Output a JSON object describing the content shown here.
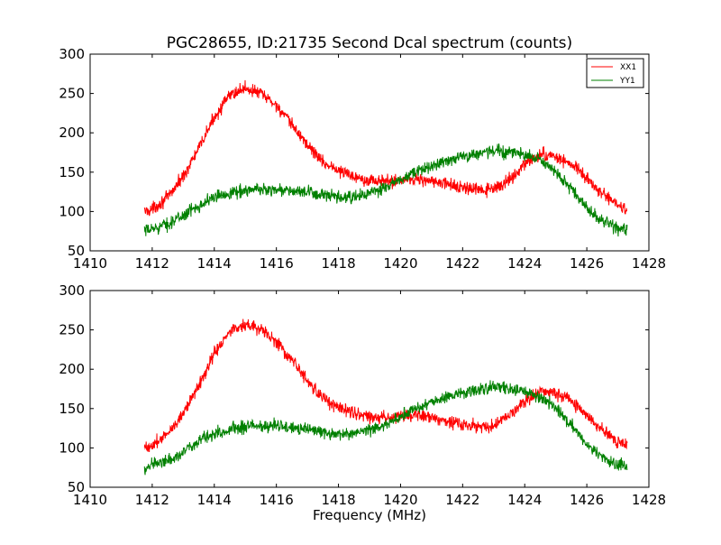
{
  "colors": {
    "background": "#ffffff",
    "axes": "#000000",
    "XX1": "#ff0000",
    "YY1": "#008000"
  },
  "chart_data": [
    {
      "type": "line",
      "title": "PGC28655, ID:21735 Second Dcal spectrum (counts)",
      "xlabel": "",
      "ylabel": "",
      "xlim": [
        1410,
        1428
      ],
      "ylim": [
        50,
        300
      ],
      "xticks": [
        1410,
        1412,
        1414,
        1416,
        1418,
        1420,
        1422,
        1424,
        1426,
        1428
      ],
      "yticks": [
        50,
        100,
        150,
        200,
        250,
        300
      ],
      "grid": false,
      "legend": {
        "placement": "top-right"
      },
      "noise": 5,
      "series": [
        {
          "name": "XX1",
          "color": "#ff0000",
          "x": [
            1411.75,
            1412.0,
            1412.5,
            1413.0,
            1413.5,
            1414.0,
            1414.5,
            1415.0,
            1415.5,
            1416.0,
            1416.5,
            1417.0,
            1417.5,
            1418.0,
            1418.5,
            1419.0,
            1419.5,
            1420.0,
            1420.5,
            1421.0,
            1421.5,
            1422.0,
            1422.5,
            1423.0,
            1423.5,
            1424.0,
            1424.5,
            1425.0,
            1425.5,
            1426.0,
            1426.5,
            1427.0,
            1427.3
          ],
          "y": [
            100,
            103,
            118,
            145,
            180,
            220,
            248,
            257,
            250,
            235,
            210,
            185,
            163,
            152,
            145,
            140,
            138,
            140,
            142,
            138,
            135,
            130,
            127,
            128,
            140,
            160,
            172,
            170,
            160,
            142,
            122,
            108,
            104
          ]
        },
        {
          "name": "YY1",
          "color": "#008000",
          "x": [
            1411.75,
            1412.0,
            1412.5,
            1413.0,
            1413.5,
            1414.0,
            1414.5,
            1415.0,
            1415.5,
            1416.0,
            1416.5,
            1417.0,
            1417.5,
            1418.0,
            1418.5,
            1419.0,
            1419.5,
            1420.0,
            1420.5,
            1421.0,
            1421.5,
            1422.0,
            1422.5,
            1423.0,
            1423.5,
            1424.0,
            1424.5,
            1425.0,
            1425.5,
            1426.0,
            1426.5,
            1427.0,
            1427.3
          ],
          "y": [
            74,
            78,
            84,
            95,
            108,
            118,
            124,
            127,
            128,
            128,
            126,
            124,
            121,
            117,
            118,
            123,
            130,
            140,
            150,
            158,
            165,
            170,
            174,
            177,
            176,
            172,
            165,
            150,
            128,
            105,
            88,
            79,
            77
          ]
        }
      ]
    },
    {
      "type": "line",
      "title": "",
      "xlabel": "Frequency (MHz)",
      "ylabel": "",
      "xlim": [
        1410,
        1428
      ],
      "ylim": [
        50,
        300
      ],
      "xticks": [
        1410,
        1412,
        1414,
        1416,
        1418,
        1420,
        1422,
        1424,
        1426,
        1428
      ],
      "yticks": [
        50,
        100,
        150,
        200,
        250,
        300
      ],
      "grid": false,
      "noise": 5,
      "series": [
        {
          "color": "#ff0000",
          "x": [
            1411.75,
            1412.0,
            1412.5,
            1413.0,
            1413.5,
            1414.0,
            1414.5,
            1415.0,
            1415.5,
            1416.0,
            1416.5,
            1417.0,
            1417.5,
            1418.0,
            1418.5,
            1419.0,
            1419.5,
            1420.0,
            1420.5,
            1421.0,
            1421.5,
            1422.0,
            1422.5,
            1423.0,
            1423.5,
            1424.0,
            1424.5,
            1425.0,
            1425.5,
            1426.0,
            1426.5,
            1427.0,
            1427.3
          ],
          "y": [
            100,
            103,
            118,
            145,
            180,
            220,
            248,
            257,
            250,
            235,
            210,
            185,
            163,
            152,
            145,
            140,
            138,
            140,
            142,
            138,
            135,
            130,
            127,
            128,
            140,
            160,
            172,
            170,
            160,
            142,
            122,
            108,
            104
          ]
        },
        {
          "color": "#008000",
          "x": [
            1411.75,
            1412.0,
            1412.5,
            1413.0,
            1413.5,
            1414.0,
            1414.5,
            1415.0,
            1415.5,
            1416.0,
            1416.5,
            1417.0,
            1417.5,
            1418.0,
            1418.5,
            1419.0,
            1419.5,
            1420.0,
            1420.5,
            1421.0,
            1421.5,
            1422.0,
            1422.5,
            1423.0,
            1423.5,
            1424.0,
            1424.5,
            1425.0,
            1425.5,
            1426.0,
            1426.5,
            1427.0,
            1427.3
          ],
          "y": [
            74,
            78,
            84,
            95,
            108,
            118,
            124,
            127,
            128,
            128,
            126,
            124,
            121,
            117,
            118,
            123,
            130,
            140,
            150,
            158,
            165,
            170,
            174,
            177,
            176,
            172,
            165,
            150,
            128,
            105,
            88,
            79,
            77
          ]
        }
      ]
    }
  ]
}
